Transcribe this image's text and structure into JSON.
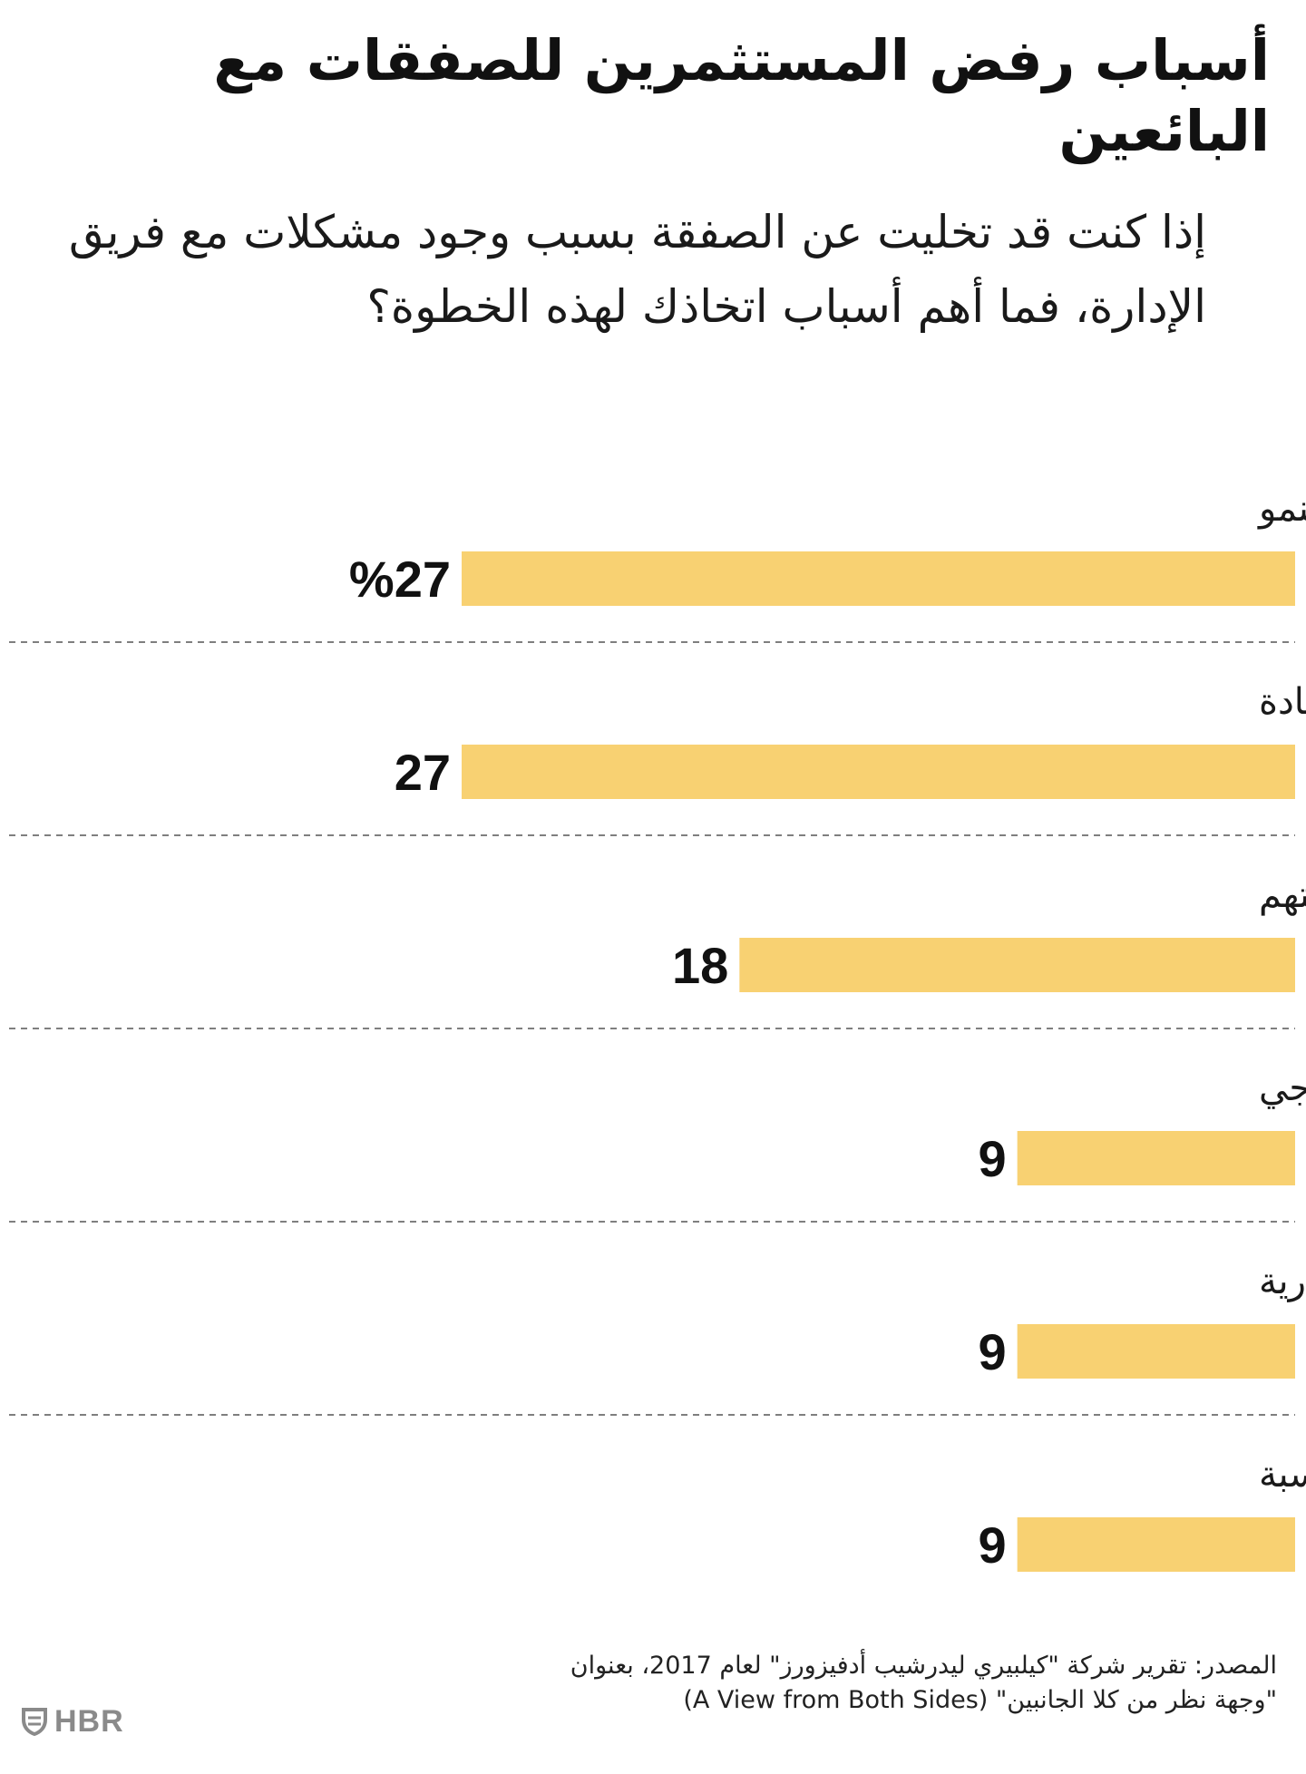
{
  "title": "أسباب رفض المستثمرين للصفقات مع البائعين",
  "subtitle": "إذا كنت قد تخليت عن الصفقة بسبب وجود مشكلات مع فريق الإدارة، فما أهم أسباب اتخاذك لهذه الخطوة؟",
  "source": {
    "line1": "المصدر: تقرير شركة \"كيلبيري ليدرشيب أدفيزورز\" لعام 2017، بعنوان",
    "line2": "\"وجهة نظر من كلا الجانبين\"  (A View from Both Sides)"
  },
  "logo": {
    "text": "HBR",
    "icon": "shield-icon"
  },
  "colors": {
    "bar": "#F8D172",
    "divider": "#555555",
    "text": "#111111"
  },
  "chart_data": {
    "type": "bar",
    "orientation": "horizontal",
    "unit": "%",
    "categories": [
      "عدم وجود دافعية أو حافز كافٍ للنمو",
      "ضعف مهارات القيادة",
      "وجود شكوك حول نزاهتهم",
      "بناءً على توصية من تقييم خارجي",
      "ضعف الفطنة المالية والتجارية",
      "شخصيات مزعجة أو غير مناسبة"
    ],
    "values": [
      27,
      27,
      18,
      9,
      9,
      9
    ],
    "value_labels": [
      "%27",
      "27",
      "18",
      "9",
      "9",
      "9"
    ],
    "xlim": [
      0,
      27
    ],
    "grid": false,
    "legend": "none"
  }
}
